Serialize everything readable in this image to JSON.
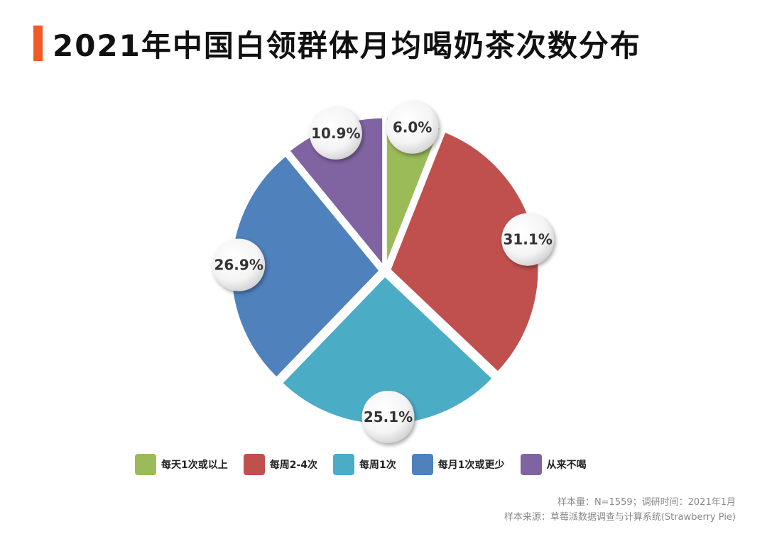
{
  "title": "2021年中国白领群体月均喝奶茶次数分布",
  "chart_data": {
    "type": "pie",
    "categories": [
      "每天1次或以上",
      "每周2-4次",
      "每周1次",
      "每月1次或更少",
      "从来不喝"
    ],
    "values": [
      6.0,
      31.1,
      25.1,
      26.9,
      10.9
    ],
    "value_labels": [
      "6.0%",
      "31.1%",
      "25.1%",
      "26.9%",
      "10.9%"
    ],
    "colors": [
      "#9bbb59",
      "#c0504d",
      "#4bacc6",
      "#4f81bd",
      "#8064a2"
    ],
    "legend_position": "bottom",
    "start_angle": "12 o'clock, clockwise"
  },
  "footnotes": {
    "sample": "样本量：N=1559；调研时间：2021年1月",
    "source": "样本来源：草莓派数据调查与计算系统(Strawberry Pie)"
  }
}
